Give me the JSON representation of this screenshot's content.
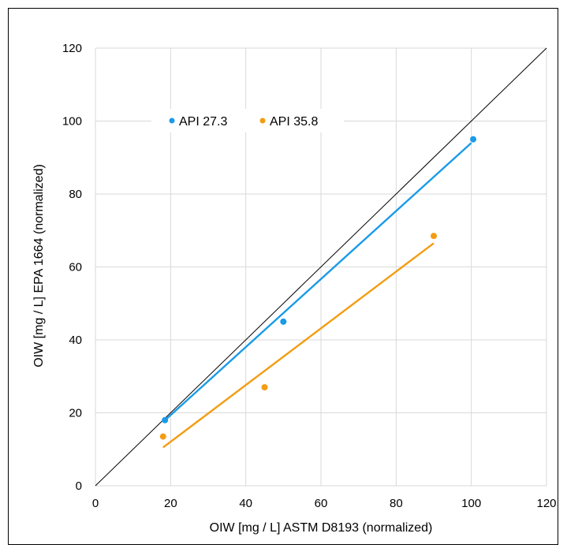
{
  "chart_data": {
    "type": "scatter",
    "xlabel": "OIW [mg / L] ASTM D8193 (normalized)",
    "ylabel": "OIW [mg / L] EPA 1664 (normalized)",
    "xlim": [
      0,
      120
    ],
    "ylim": [
      0,
      120
    ],
    "x_ticks": [
      "0",
      "20",
      "40",
      "60",
      "80",
      "100",
      "120"
    ],
    "y_ticks": [
      "0",
      "20",
      "40",
      "60",
      "80",
      "100",
      "120"
    ],
    "grid": true,
    "legend_position": "top-left",
    "reference_line": {
      "type": "y=x",
      "color": "#000000"
    },
    "series": [
      {
        "name": "API 27.3",
        "color": "#1a9be8",
        "points": [
          {
            "x": 18.5,
            "y": 18
          },
          {
            "x": 50,
            "y": 45
          },
          {
            "x": 100.5,
            "y": 95
          }
        ],
        "trendline": {
          "x": [
            18,
            100
          ],
          "y": [
            17.5,
            94
          ]
        }
      },
      {
        "name": "API 35.8",
        "color": "#f39c12",
        "points": [
          {
            "x": 18,
            "y": 13.5
          },
          {
            "x": 45,
            "y": 27
          },
          {
            "x": 90,
            "y": 68.5
          }
        ],
        "trendline": {
          "x": [
            18,
            90
          ],
          "y": [
            10.5,
            66.5
          ]
        }
      }
    ]
  }
}
